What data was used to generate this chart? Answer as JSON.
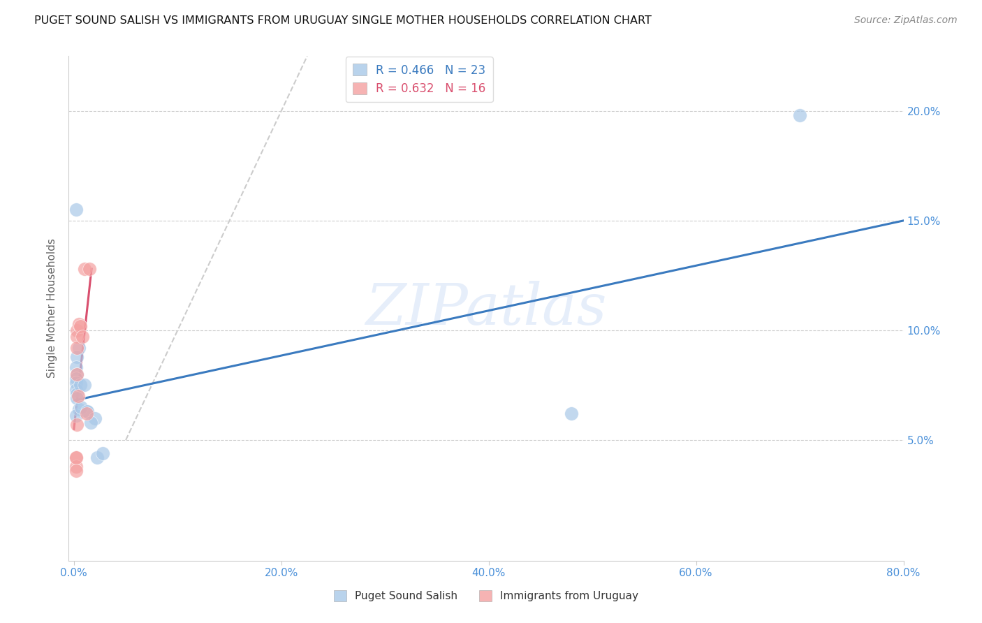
{
  "title": "PUGET SOUND SALISH VS IMMIGRANTS FROM URUGUAY SINGLE MOTHER HOUSEHOLDS CORRELATION CHART",
  "source": "Source: ZipAtlas.com",
  "ylabel": "Single Mother Households",
  "xlabel_ticks": [
    "0.0%",
    "20.0%",
    "40.0%",
    "60.0%",
    "80.0%"
  ],
  "ylabel_ticks": [
    "5.0%",
    "10.0%",
    "15.0%",
    "20.0%"
  ],
  "xlim": [
    -0.005,
    0.8
  ],
  "ylim": [
    -0.005,
    0.225
  ],
  "legend1_label": "R = 0.466   N = 23",
  "legend2_label": "R = 0.632   N = 16",
  "blue_color": "#a8c8e8",
  "pink_color": "#f4a0a0",
  "blue_line_color": "#3a7abf",
  "pink_line_color": "#d94f6e",
  "diagonal_color": "#cccccc",
  "watermark": "ZIPatlas",
  "blue_scatter_x": [
    0.002,
    0.005,
    0.003,
    0.002,
    0.003,
    0.002,
    0.002,
    0.002,
    0.003,
    0.003,
    0.005,
    0.012,
    0.002,
    0.006,
    0.007,
    0.01,
    0.013,
    0.02,
    0.016,
    0.022,
    0.48,
    0.7,
    0.028
  ],
  "blue_scatter_y": [
    0.155,
    0.092,
    0.088,
    0.083,
    0.08,
    0.078,
    0.076,
    0.073,
    0.071,
    0.069,
    0.064,
    0.063,
    0.061,
    0.075,
    0.065,
    0.075,
    0.063,
    0.06,
    0.058,
    0.042,
    0.062,
    0.198,
    0.044
  ],
  "pink_scatter_x": [
    0.002,
    0.002,
    0.003,
    0.003,
    0.003,
    0.003,
    0.004,
    0.005,
    0.006,
    0.008,
    0.01,
    0.012,
    0.015,
    0.002,
    0.002,
    0.003
  ],
  "pink_scatter_y": [
    0.042,
    0.038,
    0.1,
    0.097,
    0.092,
    0.08,
    0.07,
    0.103,
    0.102,
    0.097,
    0.128,
    0.062,
    0.128,
    0.042,
    0.036,
    0.057
  ],
  "blue_line_x": [
    0.0,
    0.8
  ],
  "blue_line_y": [
    0.068,
    0.15
  ],
  "pink_line_x": [
    0.0,
    0.017
  ],
  "pink_line_y": [
    0.055,
    0.128
  ],
  "diag_line_x": [
    0.05,
    0.225
  ],
  "diag_line_y": [
    0.05,
    0.225
  ]
}
